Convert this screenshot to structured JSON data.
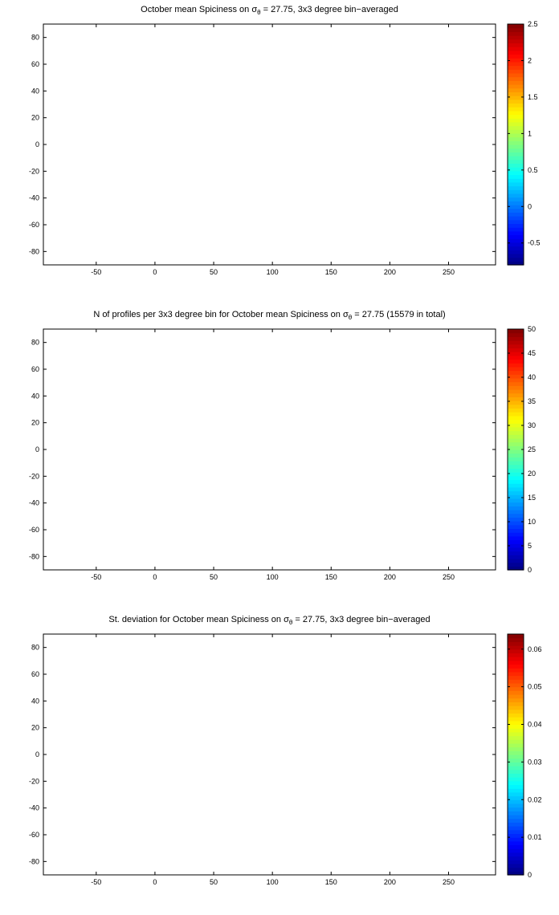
{
  "chart_data": [
    {
      "type": "heatmap",
      "title_prefix": "October mean Spiciness on ",
      "title_symbol": "σ",
      "title_subscript": "θ",
      "title_suffix": " = 27.75, 3x3 degree bin−averaged",
      "xlim": [
        -95,
        290
      ],
      "ylim": [
        -90,
        90
      ],
      "xticks": [
        "-50",
        "0",
        "50",
        "100",
        "150",
        "200",
        "250"
      ],
      "yticks": [
        "80",
        "60",
        "40",
        "20",
        "0",
        "-20",
        "-40",
        "-60",
        "-80"
      ],
      "colorbar_ticks": [
        "2.5",
        "2",
        "1.5",
        "1",
        "0.5",
        "0",
        "-0.5"
      ],
      "colorbar_range": [
        -0.8,
        2.5
      ]
    },
    {
      "type": "heatmap",
      "title_prefix": "N of profiles per 3x3 degree bin for October mean Spiciness on ",
      "title_symbol": "σ",
      "title_subscript": "θ",
      "title_suffix": " = 27.75 (15579 in total)",
      "xlim": [
        -95,
        290
      ],
      "ylim": [
        -90,
        90
      ],
      "xticks": [
        "-50",
        "0",
        "50",
        "100",
        "150",
        "200",
        "250"
      ],
      "yticks": [
        "80",
        "60",
        "40",
        "20",
        "0",
        "-20",
        "-40",
        "-60",
        "-80"
      ],
      "colorbar_ticks": [
        "50",
        "45",
        "40",
        "35",
        "30",
        "25",
        "20",
        "15",
        "10",
        "5",
        "0"
      ],
      "colorbar_range": [
        0,
        50
      ]
    },
    {
      "type": "heatmap",
      "title_prefix": "St. deviation for October mean Spiciness on ",
      "title_symbol": "σ",
      "title_subscript": "θ",
      "title_suffix": " = 27.75, 3x3 degree bin−averaged",
      "xlim": [
        -95,
        290
      ],
      "ylim": [
        -90,
        90
      ],
      "xticks": [
        "-50",
        "0",
        "50",
        "100",
        "150",
        "200",
        "250"
      ],
      "yticks": [
        "80",
        "60",
        "40",
        "20",
        "0",
        "-20",
        "-40",
        "-60",
        "-80"
      ],
      "colorbar_ticks": [
        "0.06",
        "0.05",
        "0.04",
        "0.03",
        "0.02",
        "0.01",
        "0"
      ],
      "colorbar_range": [
        0,
        0.064
      ]
    }
  ]
}
